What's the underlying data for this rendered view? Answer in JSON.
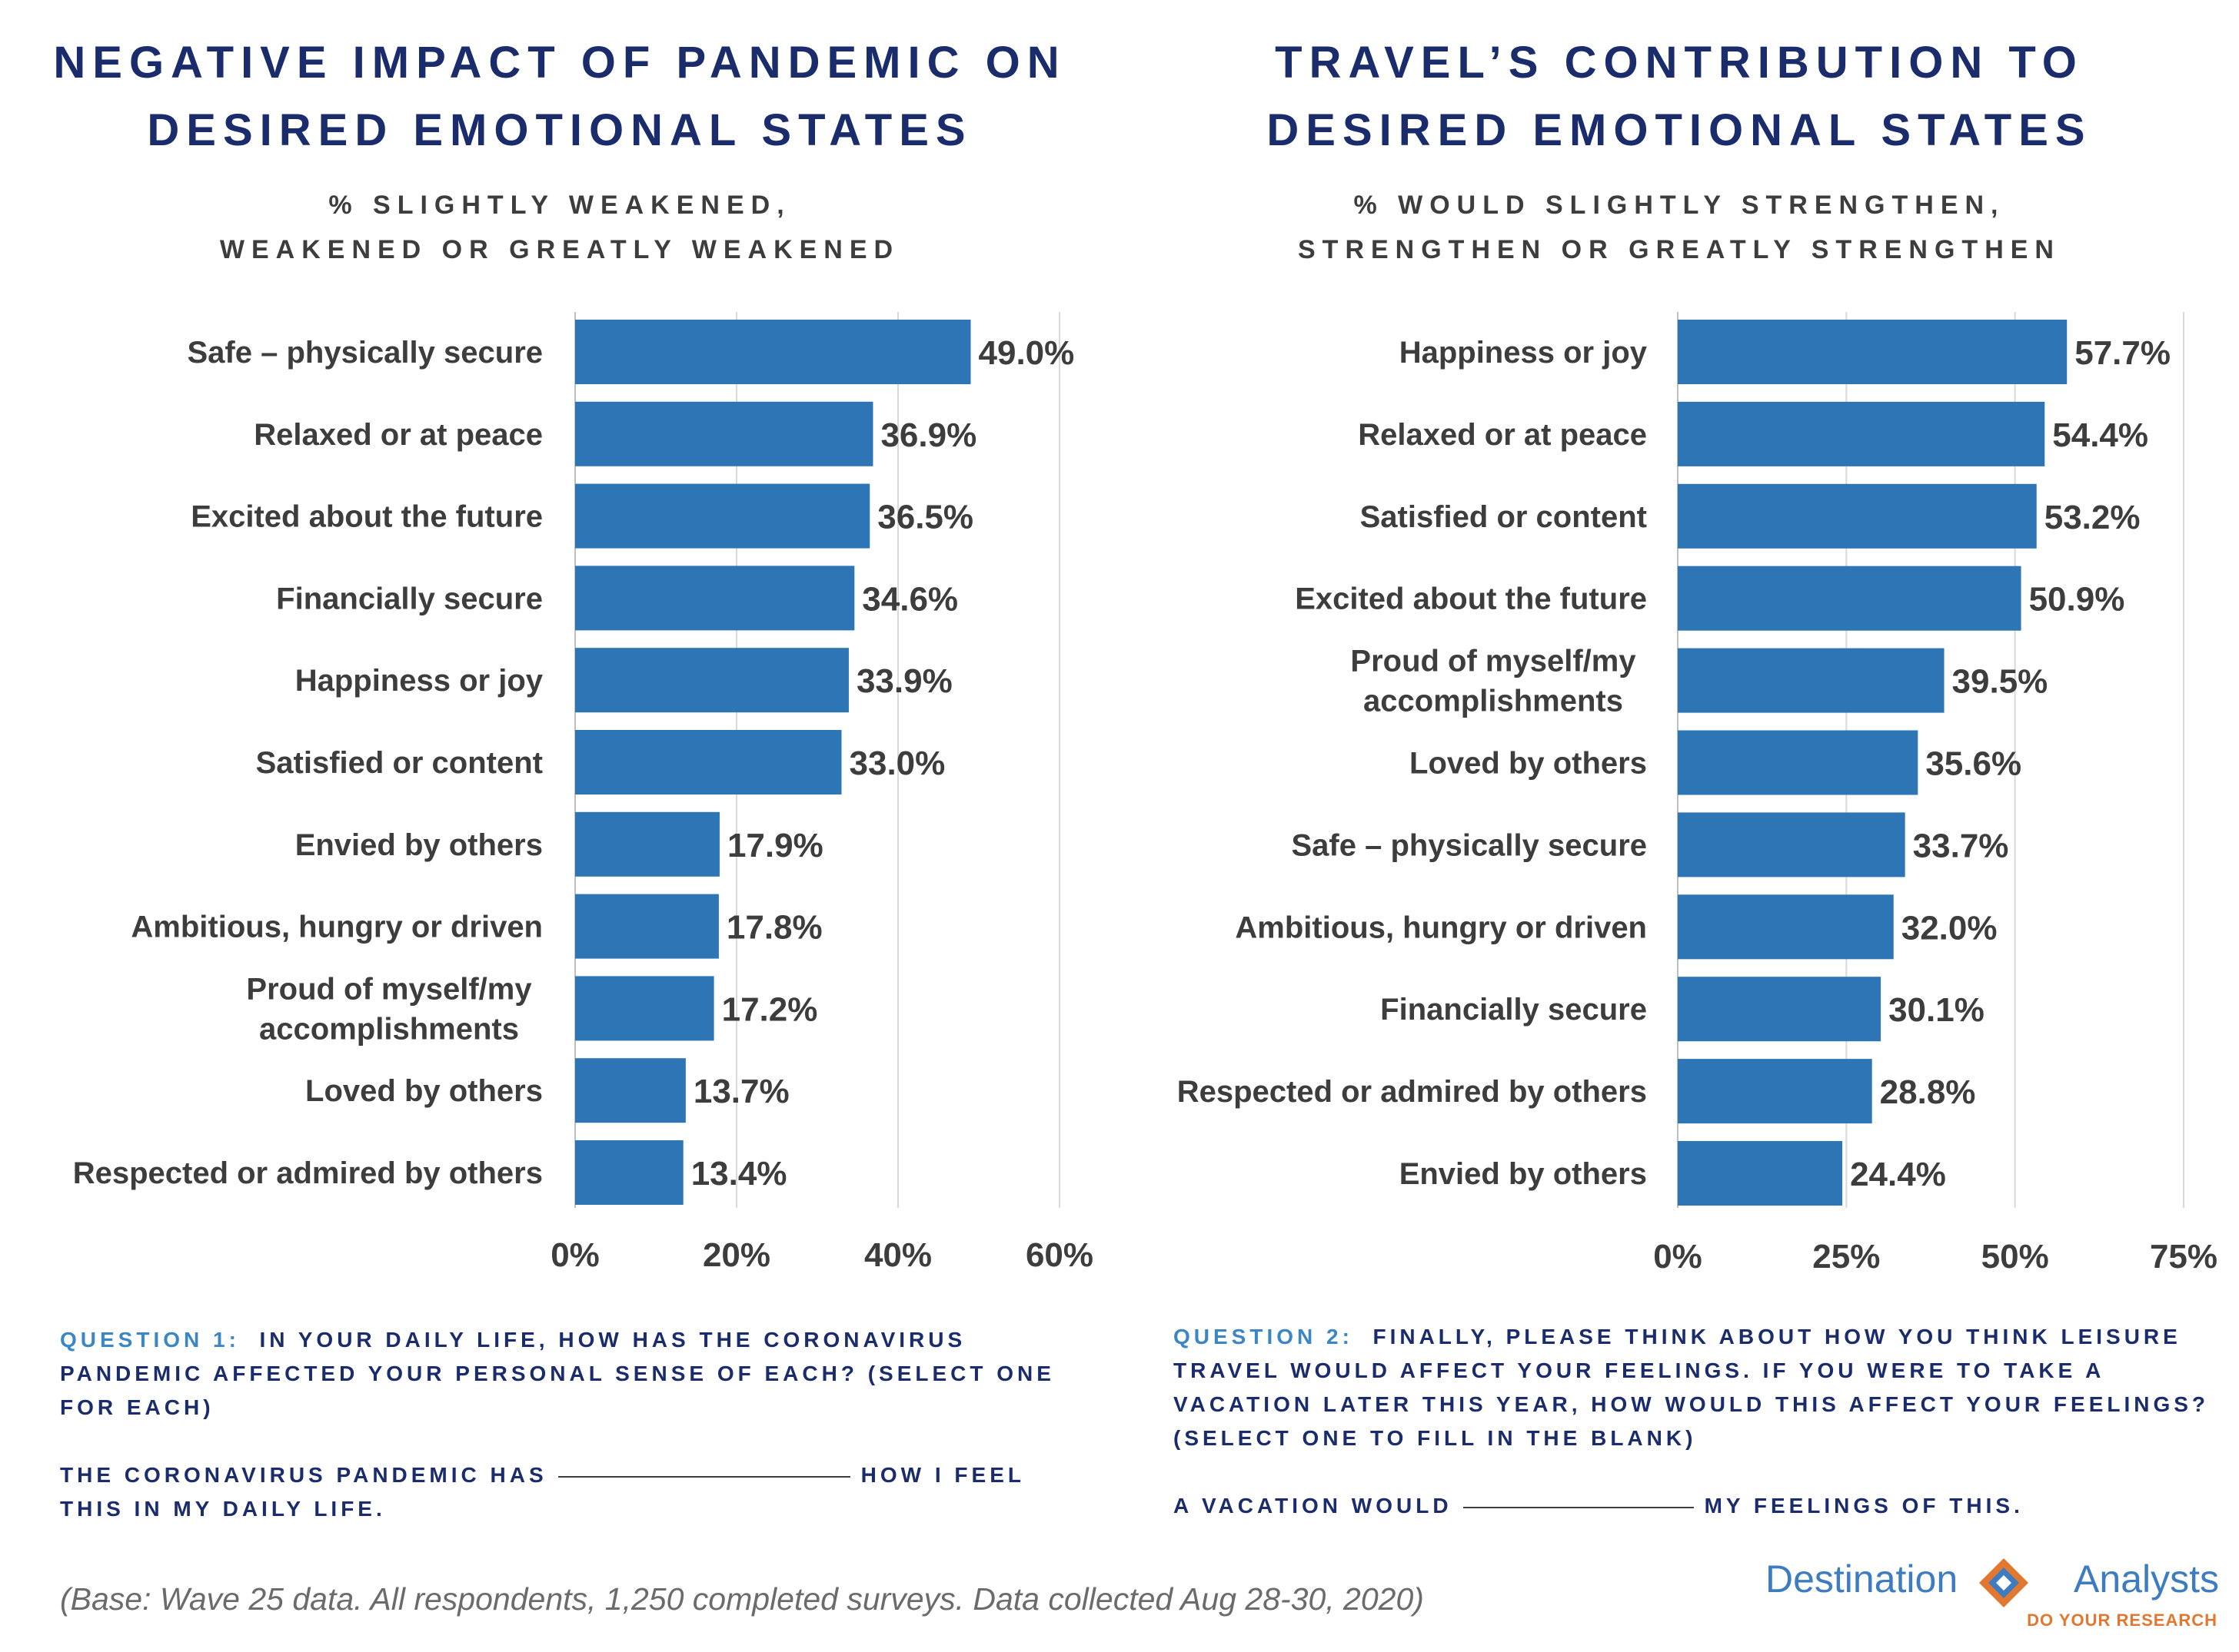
{
  "left": {
    "title_lines": [
      "NEGATIVE IMPACT OF PANDEMIC ON",
      "DESIRED EMOTIONAL STATES"
    ],
    "subtitle_lines": [
      "% SLIGHTLY WEAKENED,",
      "WEAKENED OR GREATLY WEAKENED"
    ],
    "question": {
      "label": "QUESTION 1:",
      "text": "IN YOUR DAILY LIFE, HOW HAS THE CORONAVIRUS PANDEMIC AFFECTED YOUR PERSONAL SENSE OF EACH? (SELECT ONE FOR EACH)",
      "fill_before": "THE CORONAVIRUS PANDEMIC HAS",
      "fill_after": "HOW I FEEL THIS IN MY DAILY LIFE."
    }
  },
  "right": {
    "title_lines": [
      "TRAVEL’S CONTRIBUTION TO",
      "DESIRED EMOTIONAL STATES"
    ],
    "subtitle_lines": [
      "% WOULD SLIGHTLY STRENGTHEN,",
      "STRENGTHEN OR GREATLY STRENGTHEN"
    ],
    "question": {
      "label": "QUESTION 2:",
      "text": "FINALLY, PLEASE THINK ABOUT HOW YOU THINK LEISURE TRAVEL WOULD AFFECT YOUR FEELINGS.  IF YOU WERE TO TAKE A VACATION LATER THIS YEAR, HOW WOULD THIS AFFECT YOUR FEELINGS?",
      "instruction": "(SELECT ONE TO FILL IN THE BLANK)",
      "fill_before": "A VACATION WOULD",
      "fill_after": "MY FEELINGS OF THIS."
    }
  },
  "footnote": "(Base: Wave 25 data. All respondents, 1,250 completed surveys. Data collected Aug 28-30, 2020)",
  "logo": {
    "name_left": "Destination",
    "name_right": "Analysts",
    "tagline": "DO YOUR RESEARCH",
    "colors": {
      "blue": "#3d7cc0",
      "orange": "#e27730"
    }
  },
  "colors": {
    "bar": "#2e75b6",
    "title": "#1a2c6b",
    "question_label": "#3b86c4",
    "text": "#3d3d3d"
  },
  "chart_data": [
    {
      "type": "bar",
      "orientation": "horizontal",
      "title": "NEGATIVE IMPACT OF PANDEMIC ON DESIRED EMOTIONAL STATES",
      "subtitle": "% SLIGHTLY WEAKENED, WEAKENED OR GREATLY WEAKENED",
      "categories": [
        "Safe – physically secure",
        "Relaxed or at peace",
        "Excited about the future",
        "Financially secure",
        "Happiness or joy",
        "Satisfied or content",
        "Envied by others",
        "Ambitious, hungry or driven",
        "Proud of myself/my accomplishments",
        "Loved by others",
        "Respected or admired by others"
      ],
      "values": [
        49.0,
        36.9,
        36.5,
        34.6,
        33.9,
        33.0,
        17.9,
        17.8,
        17.2,
        13.7,
        13.4
      ],
      "value_labels": [
        "49.0%",
        "36.9%",
        "36.5%",
        "34.6%",
        "33.9%",
        "33.0%",
        "17.9%",
        "17.8%",
        "17.2%",
        "13.7%",
        "13.4%"
      ],
      "ticks": [
        0,
        20,
        40,
        60
      ],
      "tick_labels": [
        "0%",
        "20%",
        "40%",
        "60%"
      ],
      "xlim": [
        0,
        60
      ],
      "grid": true
    },
    {
      "type": "bar",
      "orientation": "horizontal",
      "title": "TRAVEL’S CONTRIBUTION TO DESIRED EMOTIONAL STATES",
      "subtitle": "% WOULD SLIGHTLY STRENGTHEN, STRENGTHEN OR GREATLY STRENGTHEN",
      "categories": [
        "Happiness or joy",
        "Relaxed or at peace",
        "Satisfied or content",
        "Excited about the future",
        "Proud of myself/my accomplishments",
        "Loved by others",
        "Safe – physically secure",
        "Ambitious, hungry or driven",
        "Financially secure",
        "Respected or admired by others",
        "Envied by others"
      ],
      "values": [
        57.7,
        54.4,
        53.2,
        50.9,
        39.5,
        35.6,
        33.7,
        32.0,
        30.1,
        28.8,
        24.4
      ],
      "value_labels": [
        "57.7%",
        "54.4%",
        "53.2%",
        "50.9%",
        "39.5%",
        "35.6%",
        "33.7%",
        "32.0%",
        "30.1%",
        "28.8%",
        "24.4%"
      ],
      "ticks": [
        0,
        25,
        50,
        75
      ],
      "tick_labels": [
        "0%",
        "25%",
        "50%",
        "75%"
      ],
      "xlim": [
        0,
        75
      ],
      "grid": true
    }
  ]
}
